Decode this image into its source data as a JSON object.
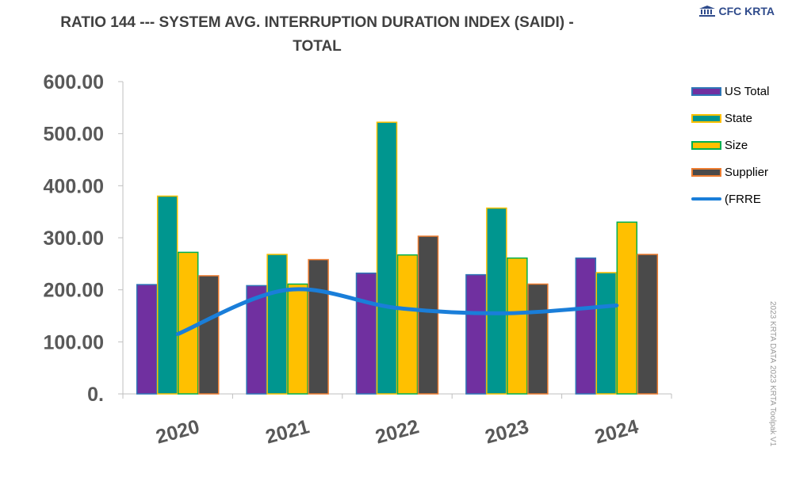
{
  "title": {
    "line1": "RATIO 144 --- SYSTEM AVG. INTERRUPTION  DURATION INDEX (SAIDI) -",
    "line2": "TOTAL"
  },
  "logo": {
    "text": "CFC KRTA",
    "icon": "bank-building-icon"
  },
  "watermark": {
    "text1": "2023 KRTA DATA",
    "text2": "2023 KRTA Toolpak V1"
  },
  "legend": {
    "items": [
      {
        "label": "US Total",
        "fill": "#7030a0",
        "border": "#2e75b6",
        "type": "bar"
      },
      {
        "label": "State",
        "fill": "#00968f",
        "border": "#ffc000",
        "type": "bar"
      },
      {
        "label": "Size",
        "fill": "#ffc000",
        "border": "#00b050",
        "type": "bar"
      },
      {
        "label": "Supplier",
        "fill": "#4a4a4a",
        "border": "#ed7d31",
        "type": "bar"
      },
      {
        "label": "(FRRE",
        "color": "#1a7ed9",
        "type": "line"
      }
    ]
  },
  "chart_data": {
    "type": "bar",
    "title": "RATIO 144 --- SYSTEM AVG. INTERRUPTION  DURATION INDEX (SAIDI) - TOTAL",
    "categories": [
      "2020",
      "2021",
      "2022",
      "2023",
      "2024"
    ],
    "ylim": [
      0,
      600
    ],
    "yticks": [
      0,
      100,
      200,
      300,
      400,
      500,
      600
    ],
    "ytick_labels": [
      "0.",
      "100.00",
      "200.00",
      "300.00",
      "400.00",
      "500.00",
      "600.00"
    ],
    "grid": false,
    "legend_position": "right",
    "series": [
      {
        "name": "US Total",
        "type": "bar",
        "values": [
          210,
          208,
          232,
          229,
          261
        ]
      },
      {
        "name": "State",
        "type": "bar",
        "values": [
          380,
          268,
          522,
          357,
          233
        ]
      },
      {
        "name": "Size",
        "type": "bar",
        "values": [
          272,
          211,
          267,
          261,
          330
        ]
      },
      {
        "name": "Supplier",
        "type": "bar",
        "values": [
          227,
          258,
          303,
          211,
          268
        ]
      },
      {
        "name": "(FRRE",
        "type": "line",
        "values": [
          115,
          200,
          165,
          155,
          170
        ]
      }
    ]
  }
}
